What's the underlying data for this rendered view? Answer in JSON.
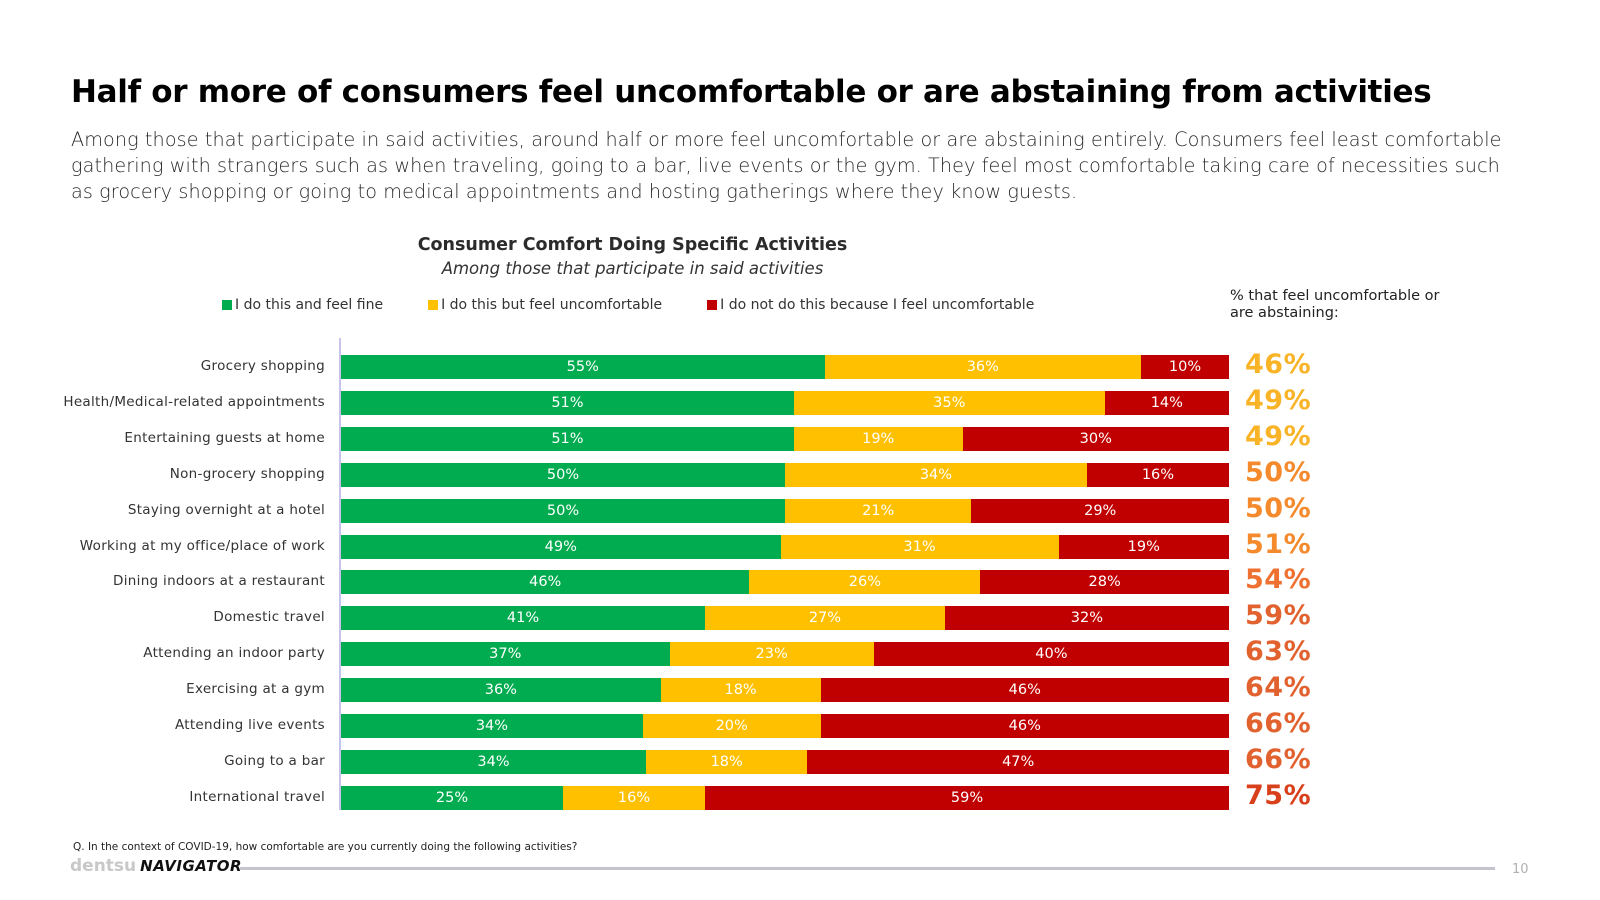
{
  "headline": "Half or more of consumers feel uncomfortable or are abstaining from activities",
  "intro": "Among those that participate in said activities, around half or more feel uncomfortable or are abstaining entirely. Consumers feel least comfortable gathering with strangers such as when traveling, going to a bar, live events or the gym. They feel most comfortable taking care of necessities such as grocery shopping or going to medical appointments and hosting gatherings where they know guests.",
  "side_header": "% that feel uncomfortable or are abstaining:",
  "footnote": "Q. In the context of COVID-19, how comfortable are you currently doing the following activities?",
  "footer": {
    "logo_brand": "dentsu",
    "logo_product": "NAVIGATOR",
    "page_number": "10"
  },
  "colors": {
    "fine": "#00ac4f",
    "uncomfortable": "#ffc000",
    "abstain": "#c00000",
    "total_scale": [
      "#f9b326",
      "#f58a2c",
      "#ef7131",
      "#e2622f",
      "#d8401c"
    ]
  },
  "chart_data": {
    "type": "bar",
    "orientation": "horizontal",
    "stacked": true,
    "title": "Consumer Comfort Doing Specific Activities",
    "subtitle": "Among those that participate in said activities",
    "xlabel": "",
    "ylabel": "",
    "xlim": [
      0,
      100
    ],
    "grid": false,
    "legend_position": "top",
    "categories": [
      "Grocery shopping",
      "Health/Medical-related appointments",
      "Entertaining guests at home",
      "Non-grocery shopping",
      "Staying overnight at a hotel",
      "Working at my office/place of work",
      "Dining indoors at a restaurant",
      "Domestic travel",
      "Attending an indoor party",
      "Exercising at a gym",
      "Attending live events",
      "Going to a bar",
      "International travel"
    ],
    "series": [
      {
        "name": "I do this and feel fine",
        "color_key": "fine",
        "values": [
          55,
          51,
          51,
          50,
          50,
          49,
          46,
          41,
          37,
          36,
          34,
          34,
          25
        ]
      },
      {
        "name": "I do this but feel uncomfortable",
        "color_key": "uncomfortable",
        "values": [
          36,
          35,
          19,
          34,
          21,
          31,
          26,
          27,
          23,
          18,
          20,
          18,
          16
        ]
      },
      {
        "name": "I do not do this because I feel uncomfortable",
        "color_key": "abstain",
        "values": [
          10,
          14,
          30,
          16,
          29,
          19,
          28,
          32,
          40,
          46,
          46,
          47,
          59
        ]
      }
    ],
    "totals_label": "% that feel uncomfortable or are abstaining:",
    "totals": [
      46,
      49,
      49,
      50,
      50,
      51,
      54,
      59,
      63,
      64,
      66,
      66,
      75
    ]
  }
}
